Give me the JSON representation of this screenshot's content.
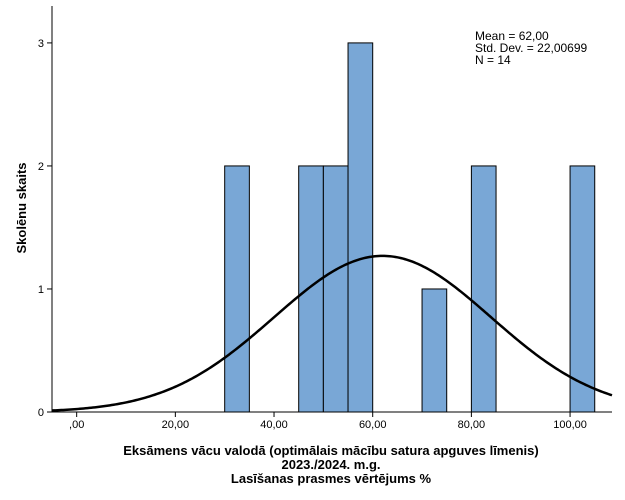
{
  "chart_data": {
    "type": "histogram",
    "bin_width": 5,
    "bins": [
      {
        "start": 30,
        "end": 35,
        "count": 2
      },
      {
        "start": 45,
        "end": 50,
        "count": 2
      },
      {
        "start": 50,
        "end": 55,
        "count": 2
      },
      {
        "start": 55,
        "end": 60,
        "count": 3
      },
      {
        "start": 70,
        "end": 75,
        "count": 1
      },
      {
        "start": 80,
        "end": 85,
        "count": 2
      },
      {
        "start": 100,
        "end": 105,
        "count": 2
      }
    ],
    "normal_curve": {
      "mean": 62.0,
      "sd": 22.00699,
      "n": 14
    },
    "xlim": [
      -5,
      108.5
    ],
    "ylim": [
      0,
      3.3
    ],
    "x_ticks": [
      0,
      20,
      40,
      60,
      80,
      100
    ],
    "x_tick_labels": [
      ",00",
      "20,00",
      "40,00",
      "60,00",
      "80,00",
      "100,00"
    ],
    "y_ticks": [
      0,
      1,
      2,
      3
    ],
    "y_tick_labels": [
      "0",
      "1",
      "2",
      "3"
    ],
    "ylabel": "Skolēnu skaits",
    "xlabel_lines": [
      "Eksāmens vācu valodā (optimālais mācību satura apguves līmenis)",
      "2023./2024. m.g.",
      "Lasīšanas prasmes vērtējums %"
    ],
    "stats_box": {
      "mean": "Mean = 62,00",
      "sd": "Std. Dev. = 22,00699",
      "n": "N = 14"
    },
    "colors": {
      "bar_fill": "#79a7d6",
      "bar_stroke": "#000000",
      "curve": "#000000",
      "background": "#ffffff"
    },
    "grid": false,
    "legend": "none"
  }
}
